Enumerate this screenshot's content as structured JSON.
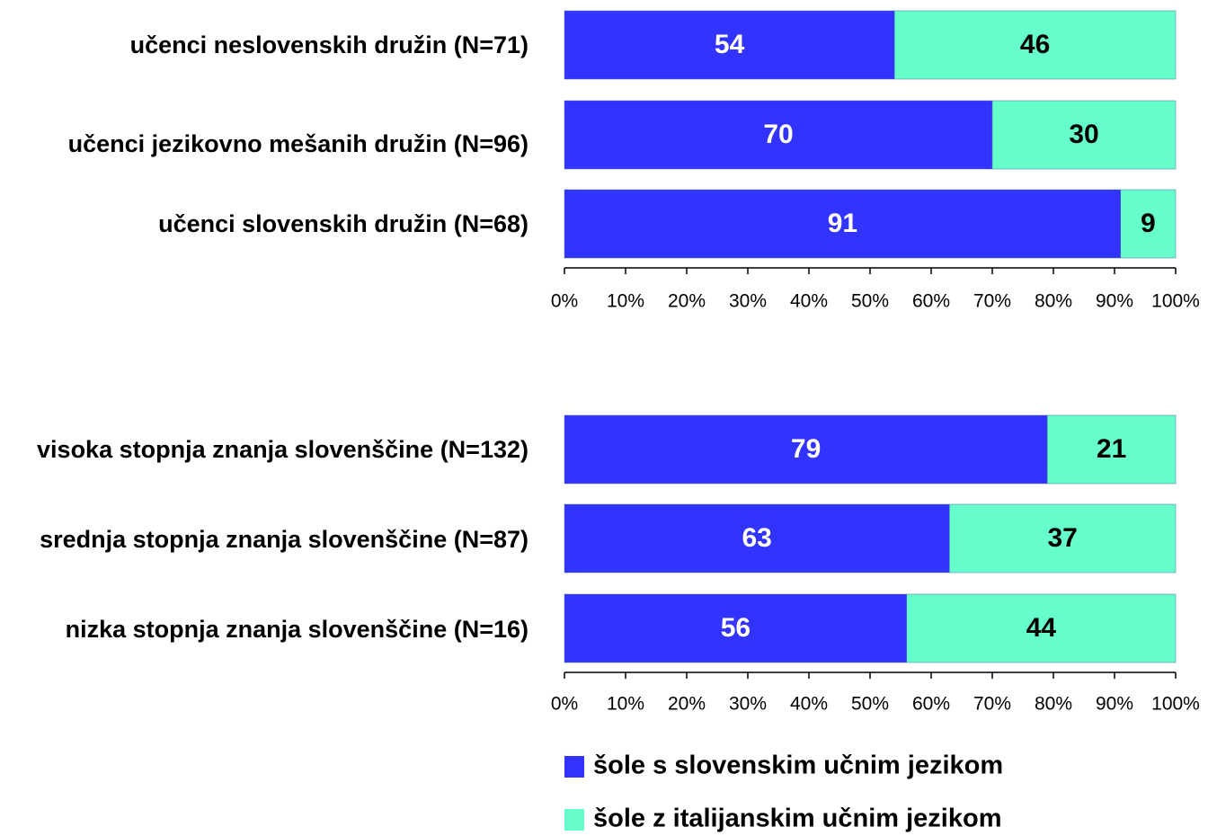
{
  "chart_data": [
    {
      "type": "stacked-bar-horizontal",
      "categories": [
        "učenci neslovenskih družin (N=71)",
        "učenci jezikovno mešanih družin (N=96)",
        "učenci slovenskih družin (N=68)"
      ],
      "series": [
        {
          "name": "šole s slovenskim učnim jezikom",
          "color": "#3333ff",
          "values": [
            54,
            70,
            91
          ]
        },
        {
          "name": "šole z italijanskim učnim jezikom",
          "color": "#66ffcc",
          "values": [
            46,
            30,
            9
          ]
        }
      ],
      "xlim": [
        0,
        100
      ],
      "xticks": [
        {
          "value": 0,
          "label": "0%"
        },
        {
          "value": 10,
          "label": "10%"
        },
        {
          "value": 20,
          "label": "20%"
        },
        {
          "value": 30,
          "label": "30%"
        },
        {
          "value": 40,
          "label": "40%"
        },
        {
          "value": 50,
          "label": "50%"
        },
        {
          "value": 60,
          "label": "60%"
        },
        {
          "value": 70,
          "label": "70%"
        },
        {
          "value": 80,
          "label": "80%"
        },
        {
          "value": 90,
          "label": "90%"
        },
        {
          "value": 100,
          "label": "100%"
        }
      ]
    },
    {
      "type": "stacked-bar-horizontal",
      "categories": [
        "visoka stopnja znanja slovenščine (N=132)",
        "srednja stopnja znanja slovenščine (N=87)",
        "nizka stopnja znanja slovenščine (N=16)"
      ],
      "series": [
        {
          "name": "šole s slovenskim učnim jezikom",
          "color": "#3333ff",
          "values": [
            79,
            63,
            56
          ]
        },
        {
          "name": "šole z italijanskim učnim jezikom",
          "color": "#66ffcc",
          "values": [
            21,
            37,
            44
          ]
        }
      ],
      "xlim": [
        0,
        100
      ],
      "xticks": [
        {
          "value": 0,
          "label": "0%"
        },
        {
          "value": 10,
          "label": "10%"
        },
        {
          "value": 20,
          "label": "20%"
        },
        {
          "value": 30,
          "label": "30%"
        },
        {
          "value": 40,
          "label": "40%"
        },
        {
          "value": 50,
          "label": "50%"
        },
        {
          "value": 60,
          "label": "60%"
        },
        {
          "value": 70,
          "label": "70%"
        },
        {
          "value": 80,
          "label": "80%"
        },
        {
          "value": 90,
          "label": "90%"
        },
        {
          "value": 100,
          "label": "100%"
        }
      ],
      "legend": "bottom"
    }
  ]
}
